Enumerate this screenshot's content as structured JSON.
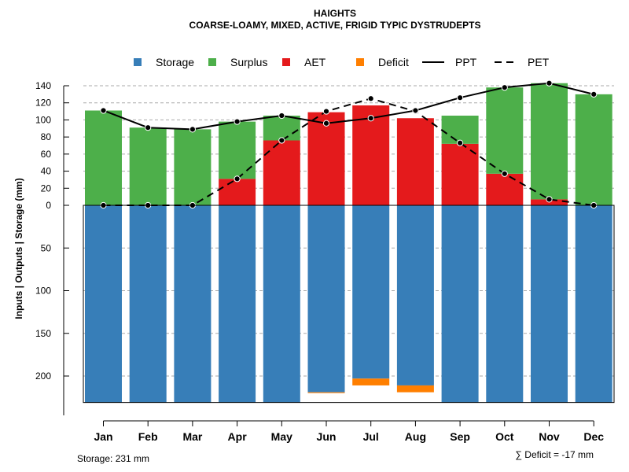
{
  "chart_data": {
    "type": "bar",
    "title": "HAIGHTS",
    "subtitle": "COARSE-LOAMY, MIXED, ACTIVE, FRIGID TYPIC DYSTRUDEPTS",
    "ylabel": "Inputs | Outputs | Storage    (mm)",
    "categories": [
      "Jan",
      "Feb",
      "Mar",
      "Apr",
      "May",
      "Jun",
      "Jul",
      "Aug",
      "Sep",
      "Oct",
      "Nov",
      "Dec"
    ],
    "y_upper_ticks": [
      "140",
      "120",
      "100",
      "80",
      "60",
      "40",
      "20",
      "0"
    ],
    "y_lower_ticks": [
      "50",
      "100",
      "150",
      "200"
    ],
    "upper_range": [
      0,
      150
    ],
    "lower_range": [
      0,
      231
    ],
    "grid": true,
    "legend_position": "top",
    "legend": [
      {
        "label": "Storage",
        "kind": "square",
        "color": "#377EB8"
      },
      {
        "label": "Surplus",
        "kind": "square",
        "color": "#4DAF4A"
      },
      {
        "label": "AET",
        "kind": "square",
        "color": "#E41A1C"
      },
      {
        "label": "Deficit",
        "kind": "square",
        "color": "#FF7F00"
      },
      {
        "label": "PPT",
        "kind": "solid-line",
        "color": "#000000"
      },
      {
        "label": "PET",
        "kind": "dashed-line",
        "color": "#000000"
      }
    ],
    "series": [
      {
        "name": "AET",
        "color": "#E41A1C",
        "values": [
          0,
          0,
          0,
          31,
          76,
          109,
          117,
          102,
          72,
          37,
          7,
          0
        ]
      },
      {
        "name": "Surplus",
        "color": "#4DAF4A",
        "values": [
          111,
          91,
          89,
          67,
          29,
          0,
          0,
          0,
          33,
          101,
          136,
          130
        ]
      },
      {
        "name": "Storage",
        "color": "#377EB8",
        "values": [
          231,
          231,
          231,
          231,
          231,
          219,
          203,
          211,
          231,
          231,
          231,
          231
        ]
      },
      {
        "name": "Deficit",
        "color": "#FF7F00",
        "values": [
          0,
          0,
          0,
          0,
          0,
          1,
          8,
          8,
          0,
          0,
          0,
          0
        ]
      },
      {
        "name": "PPT",
        "color": "#000000",
        "values": [
          111,
          91,
          89,
          98,
          105,
          96,
          102,
          111,
          126,
          138,
          143,
          130
        ]
      },
      {
        "name": "PET",
        "color": "#000000",
        "values": [
          0,
          0,
          0,
          31,
          76,
          110,
          125,
          110,
          73,
          37,
          7,
          0
        ]
      }
    ],
    "annotations": {
      "storage_note": "Storage: 231 mm",
      "deficit_note": "∑ Deficit = -17 mm"
    }
  }
}
